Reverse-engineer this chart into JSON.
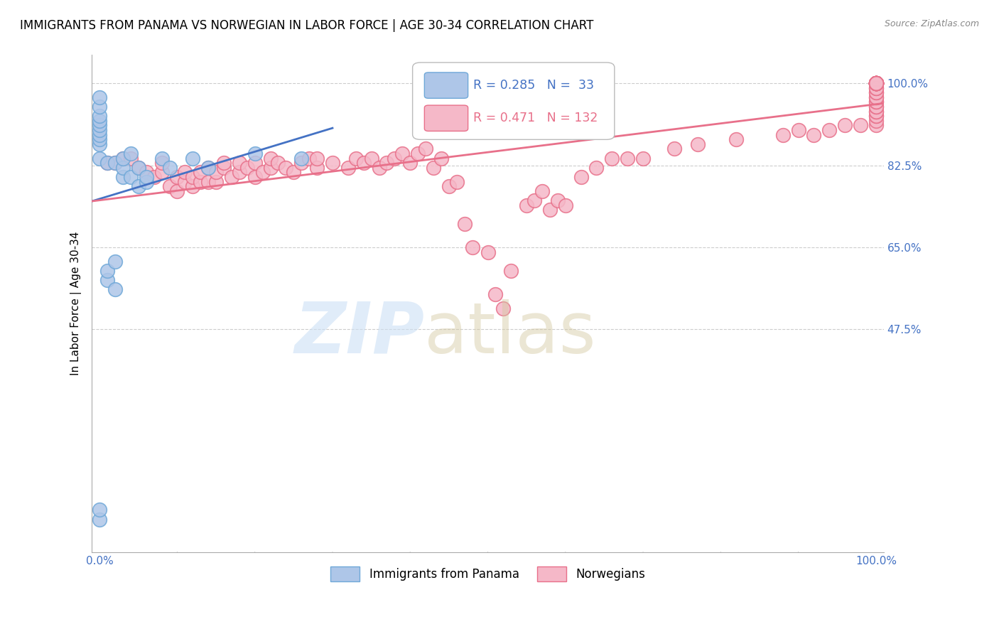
{
  "title": "IMMIGRANTS FROM PANAMA VS NORWEGIAN IN LABOR FORCE | AGE 30-34 CORRELATION CHART",
  "source": "Source: ZipAtlas.com",
  "ylabel": "In Labor Force | Age 30-34",
  "xlim": [
    -0.01,
    1.01
  ],
  "ylim": [
    0.0,
    1.06
  ],
  "yticks": [
    0.475,
    0.65,
    0.825,
    1.0
  ],
  "ytick_labels": [
    "47.5%",
    "65.0%",
    "82.5%",
    "100.0%"
  ],
  "xtick_labels": [
    "0.0%",
    "100.0%"
  ],
  "xtick_positions": [
    0.0,
    1.0
  ],
  "panama_color": "#aec6e8",
  "norway_color": "#f5b8c8",
  "panama_edge_color": "#6fa8d8",
  "norway_edge_color": "#e8708a",
  "panama_line_color": "#4472c4",
  "norway_line_color": "#e8708a",
  "R_panama": 0.285,
  "N_panama": 33,
  "R_norway": 0.471,
  "N_norway": 132,
  "background_color": "#ffffff",
  "grid_color": "#cccccc",
  "tick_color": "#4472c4",
  "title_color": "#000000",
  "source_color": "#888888",
  "panama_x": [
    0.0,
    0.0,
    0.0,
    0.0,
    0.0,
    0.0,
    0.0,
    0.0,
    0.0,
    0.0,
    0.0,
    0.0,
    0.01,
    0.01,
    0.01,
    0.02,
    0.02,
    0.02,
    0.03,
    0.03,
    0.03,
    0.04,
    0.04,
    0.05,
    0.05,
    0.06,
    0.06,
    0.08,
    0.09,
    0.12,
    0.14,
    0.2,
    0.26
  ],
  "panama_y": [
    0.07,
    0.09,
    0.84,
    0.87,
    0.88,
    0.89,
    0.9,
    0.91,
    0.92,
    0.93,
    0.95,
    0.97,
    0.58,
    0.6,
    0.83,
    0.56,
    0.62,
    0.83,
    0.8,
    0.82,
    0.84,
    0.8,
    0.85,
    0.78,
    0.82,
    0.79,
    0.8,
    0.84,
    0.82,
    0.84,
    0.82,
    0.85,
    0.84
  ],
  "norway_x": [
    0.01,
    0.02,
    0.03,
    0.04,
    0.05,
    0.06,
    0.07,
    0.08,
    0.08,
    0.09,
    0.1,
    0.1,
    0.11,
    0.11,
    0.12,
    0.12,
    0.13,
    0.13,
    0.14,
    0.14,
    0.15,
    0.15,
    0.16,
    0.16,
    0.17,
    0.18,
    0.18,
    0.19,
    0.2,
    0.2,
    0.21,
    0.22,
    0.22,
    0.23,
    0.24,
    0.25,
    0.26,
    0.27,
    0.28,
    0.28,
    0.3,
    0.32,
    0.33,
    0.34,
    0.35,
    0.36,
    0.37,
    0.38,
    0.39,
    0.4,
    0.41,
    0.42,
    0.43,
    0.44,
    0.45,
    0.46,
    0.47,
    0.48,
    0.5,
    0.51,
    0.52,
    0.53,
    0.55,
    0.56,
    0.57,
    0.58,
    0.59,
    0.6,
    0.62,
    0.64,
    0.66,
    0.68,
    0.7,
    0.74,
    0.77,
    0.82,
    0.88,
    0.9,
    0.92,
    0.94,
    0.96,
    0.98,
    1.0,
    1.0,
    1.0,
    1.0,
    1.0,
    1.0,
    1.0,
    1.0,
    1.0,
    1.0,
    1.0,
    1.0,
    1.0,
    1.0,
    1.0,
    1.0,
    1.0,
    1.0,
    1.0,
    1.0,
    1.0,
    1.0,
    1.0,
    1.0,
    1.0,
    1.0,
    1.0,
    1.0,
    1.0,
    1.0,
    1.0,
    1.0,
    1.0,
    1.0,
    1.0,
    1.0,
    1.0,
    1.0,
    1.0,
    1.0,
    1.0,
    1.0,
    1.0,
    1.0,
    1.0,
    1.0,
    1.0,
    1.0,
    1.0,
    1.0
  ],
  "norway_y": [
    0.83,
    0.83,
    0.84,
    0.84,
    0.82,
    0.81,
    0.8,
    0.81,
    0.83,
    0.78,
    0.77,
    0.8,
    0.79,
    0.81,
    0.78,
    0.8,
    0.79,
    0.81,
    0.79,
    0.82,
    0.79,
    0.81,
    0.82,
    0.83,
    0.8,
    0.81,
    0.83,
    0.82,
    0.8,
    0.83,
    0.81,
    0.82,
    0.84,
    0.83,
    0.82,
    0.81,
    0.83,
    0.84,
    0.82,
    0.84,
    0.83,
    0.82,
    0.84,
    0.83,
    0.84,
    0.82,
    0.83,
    0.84,
    0.85,
    0.83,
    0.85,
    0.86,
    0.82,
    0.84,
    0.78,
    0.79,
    0.7,
    0.65,
    0.64,
    0.55,
    0.52,
    0.6,
    0.74,
    0.75,
    0.77,
    0.73,
    0.75,
    0.74,
    0.8,
    0.82,
    0.84,
    0.84,
    0.84,
    0.86,
    0.87,
    0.88,
    0.89,
    0.9,
    0.89,
    0.9,
    0.91,
    0.91,
    0.91,
    0.92,
    0.93,
    0.93,
    0.94,
    0.94,
    0.95,
    0.95,
    0.96,
    0.96,
    0.97,
    0.97,
    0.98,
    0.98,
    0.99,
    0.99,
    1.0,
    1.0,
    1.0,
    1.0,
    1.0,
    1.0,
    1.0,
    1.0,
    1.0,
    1.0,
    1.0,
    1.0,
    1.0,
    1.0,
    1.0,
    1.0,
    1.0,
    1.0,
    1.0,
    1.0,
    1.0,
    1.0,
    1.0,
    1.0,
    1.0,
    1.0,
    1.0,
    1.0,
    1.0,
    1.0,
    1.0,
    1.0,
    1.0,
    1.0
  ]
}
